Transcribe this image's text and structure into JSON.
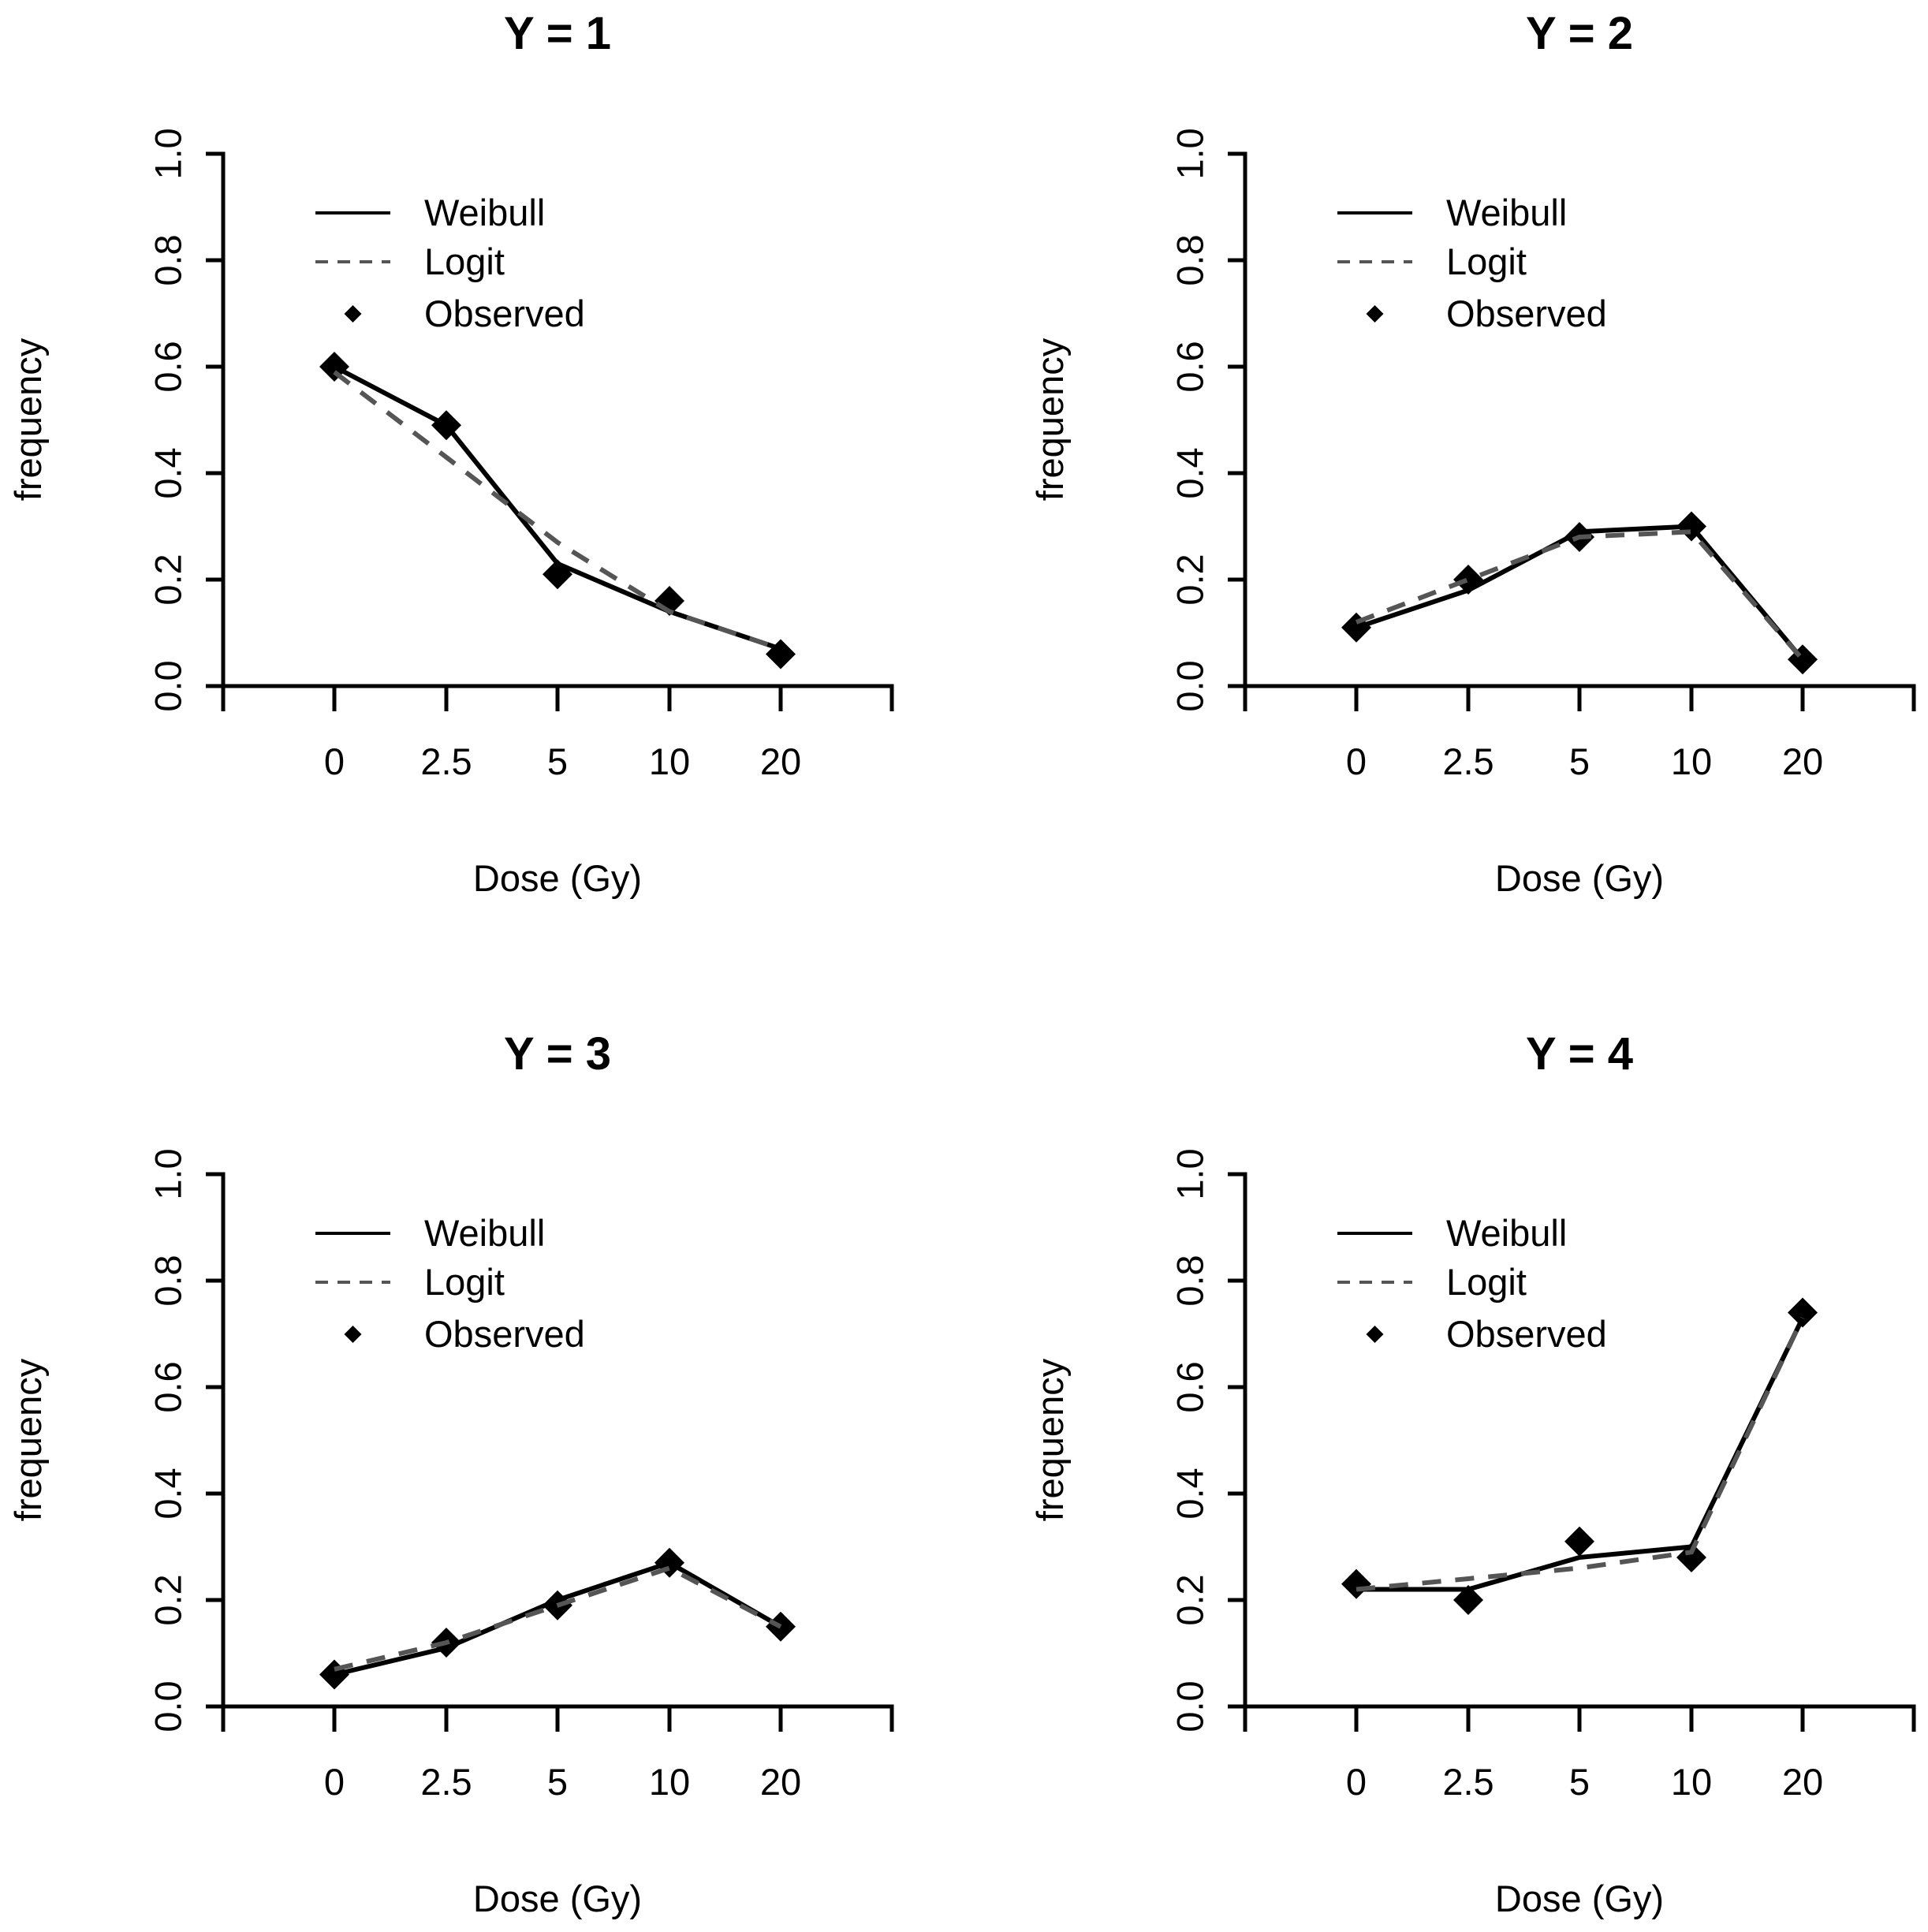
{
  "chart_data": [
    {
      "type": "line",
      "title": "Y = 1",
      "xlabel": "Dose (Gy)",
      "ylabel": "frequency",
      "categories": [
        "0",
        "2.5",
        "5",
        "10",
        "20"
      ],
      "ylim": [
        0,
        1
      ],
      "yticks": [
        "0.0",
        "0.2",
        "0.4",
        "0.6",
        "0.8",
        "1.0"
      ],
      "series": [
        {
          "name": "Weibull",
          "style": "solid",
          "color": "#000000",
          "values": [
            0.6,
            0.49,
            0.23,
            0.14,
            0.07
          ]
        },
        {
          "name": "Logit",
          "style": "dashed",
          "color": "#555555",
          "values": [
            0.59,
            0.43,
            0.27,
            0.14,
            0.07
          ]
        },
        {
          "name": "Observed",
          "style": "marker",
          "color": "#000000",
          "values": [
            0.6,
            0.49,
            0.21,
            0.16,
            0.06
          ]
        }
      ]
    },
    {
      "type": "line",
      "title": "Y = 2",
      "xlabel": "Dose (Gy)",
      "ylabel": "frequency",
      "categories": [
        "0",
        "2.5",
        "5",
        "10",
        "20"
      ],
      "ylim": [
        0,
        1
      ],
      "yticks": [
        "0.0",
        "0.2",
        "0.4",
        "0.6",
        "0.8",
        "1.0"
      ],
      "series": [
        {
          "name": "Weibull",
          "style": "solid",
          "color": "#000000",
          "values": [
            0.11,
            0.18,
            0.29,
            0.3,
            0.05
          ]
        },
        {
          "name": "Logit",
          "style": "dashed",
          "color": "#555555",
          "values": [
            0.12,
            0.2,
            0.28,
            0.29,
            0.05
          ]
        },
        {
          "name": "Observed",
          "style": "marker",
          "color": "#000000",
          "values": [
            0.11,
            0.2,
            0.28,
            0.3,
            0.05
          ]
        }
      ]
    },
    {
      "type": "line",
      "title": "Y = 3",
      "xlabel": "Dose (Gy)",
      "ylabel": "frequency",
      "categories": [
        "0",
        "2.5",
        "5",
        "10",
        "20"
      ],
      "ylim": [
        0,
        1
      ],
      "yticks": [
        "0.0",
        "0.2",
        "0.4",
        "0.6",
        "0.8",
        "1.0"
      ],
      "series": [
        {
          "name": "Weibull",
          "style": "solid",
          "color": "#000000",
          "values": [
            0.06,
            0.11,
            0.2,
            0.27,
            0.15
          ]
        },
        {
          "name": "Logit",
          "style": "dashed",
          "color": "#555555",
          "values": [
            0.07,
            0.12,
            0.19,
            0.26,
            0.15
          ]
        },
        {
          "name": "Observed",
          "style": "marker",
          "color": "#000000",
          "values": [
            0.06,
            0.12,
            0.19,
            0.27,
            0.15
          ]
        }
      ]
    },
    {
      "type": "line",
      "title": "Y = 4",
      "xlabel": "Dose (Gy)",
      "ylabel": "frequency",
      "categories": [
        "0",
        "2.5",
        "5",
        "10",
        "20"
      ],
      "ylim": [
        0,
        1
      ],
      "yticks": [
        "0.0",
        "0.2",
        "0.4",
        "0.6",
        "0.8",
        "1.0"
      ],
      "series": [
        {
          "name": "Weibull",
          "style": "solid",
          "color": "#000000",
          "values": [
            0.22,
            0.22,
            0.28,
            0.3,
            0.73
          ]
        },
        {
          "name": "Logit",
          "style": "dashed",
          "color": "#555555",
          "values": [
            0.22,
            0.24,
            0.26,
            0.29,
            0.73
          ]
        },
        {
          "name": "Observed",
          "style": "marker",
          "color": "#000000",
          "values": [
            0.23,
            0.2,
            0.31,
            0.28,
            0.74
          ]
        }
      ]
    }
  ]
}
